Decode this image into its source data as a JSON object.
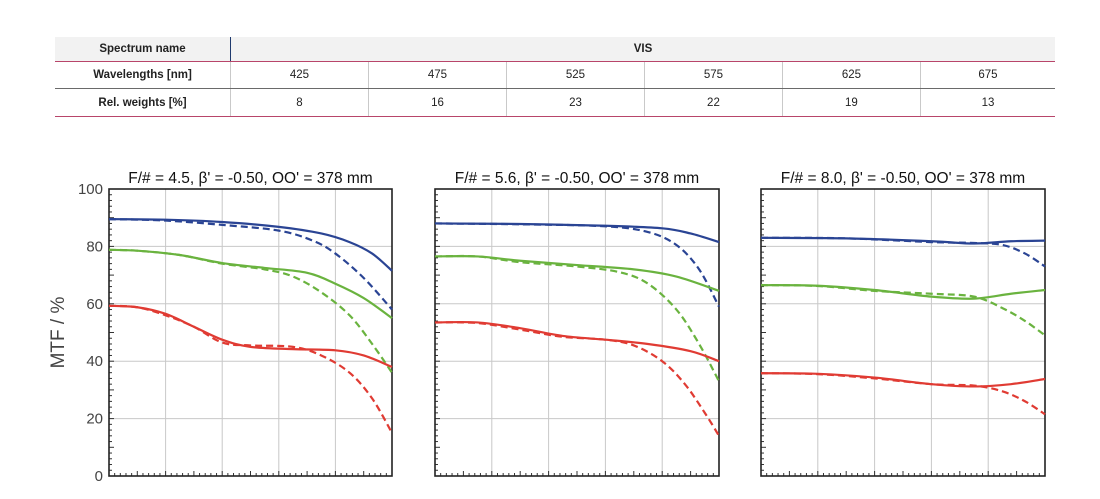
{
  "spectrum_table": {
    "row1": {
      "label": "Spectrum name",
      "value": "VIS"
    },
    "row2": {
      "label": "Wavelengths [nm]",
      "values": [
        "425",
        "475",
        "525",
        "575",
        "625",
        "675"
      ]
    },
    "row3": {
      "label": "Rel. weights [%]",
      "values": [
        "8",
        "16",
        "23",
        "22",
        "19",
        "13"
      ]
    }
  },
  "chart_data": [
    {
      "type": "line",
      "title": "F/# = 4.5, β' = -0.50, OO' = 378 mm",
      "ylabel": "MTF / %",
      "ylim": [
        0,
        100
      ],
      "yticks": [
        "0",
        "20",
        "40",
        "60",
        "80",
        "100"
      ],
      "xlim": [
        0,
        1
      ],
      "grid": true,
      "series": [
        {
          "color": "#2a4494",
          "style": "solid",
          "x": [
            0,
            0.2,
            0.4,
            0.6,
            0.75,
            0.85,
            0.93,
            1.0
          ],
          "y": [
            89.5,
            89.3,
            88.5,
            86.8,
            84.5,
            81.5,
            77.5,
            71.5
          ]
        },
        {
          "color": "#2a4494",
          "style": "dashed",
          "x": [
            0,
            0.2,
            0.4,
            0.6,
            0.72,
            0.8,
            0.9,
            1.0
          ],
          "y": [
            89.5,
            89,
            87.5,
            85.5,
            82,
            77.5,
            69,
            58
          ]
        },
        {
          "color": "#6ab33f",
          "style": "solid",
          "x": [
            0,
            0.1,
            0.25,
            0.4,
            0.55,
            0.7,
            0.8,
            0.9,
            1.0
          ],
          "y": [
            78.8,
            78.5,
            77,
            74.2,
            72.5,
            70.8,
            67,
            62,
            55
          ]
        },
        {
          "color": "#6ab33f",
          "style": "dashed",
          "x": [
            0,
            0.1,
            0.25,
            0.4,
            0.55,
            0.65,
            0.75,
            0.85,
            0.93,
            1.0
          ],
          "y": [
            78.8,
            78.5,
            77,
            74,
            72,
            69.5,
            64,
            56,
            46,
            36
          ]
        },
        {
          "color": "#e03b33",
          "style": "solid",
          "x": [
            0,
            0.1,
            0.2,
            0.3,
            0.4,
            0.5,
            0.65,
            0.8,
            0.9,
            1.0
          ],
          "y": [
            59.3,
            58.8,
            56.5,
            52,
            47.5,
            45,
            44.2,
            43.8,
            42,
            38
          ]
        },
        {
          "color": "#e03b33",
          "style": "dashed",
          "x": [
            0,
            0.1,
            0.2,
            0.3,
            0.4,
            0.5,
            0.65,
            0.75,
            0.85,
            0.93,
            1.0
          ],
          "y": [
            59.3,
            58.8,
            56,
            52,
            46.5,
            45.5,
            45,
            42,
            36,
            27,
            15
          ]
        }
      ]
    },
    {
      "type": "line",
      "title": "F/# = 5.6, β' = -0.50, OO' = 378 mm",
      "ylabel": "",
      "ylim": [
        0,
        100
      ],
      "xlim": [
        0,
        1
      ],
      "grid": true,
      "series": [
        {
          "color": "#2a4494",
          "style": "solid",
          "x": [
            0,
            0.3,
            0.6,
            0.8,
            0.9,
            1.0
          ],
          "y": [
            88,
            87.8,
            87.2,
            86.3,
            84.5,
            81.5
          ]
        },
        {
          "color": "#2a4494",
          "style": "dashed",
          "x": [
            0,
            0.3,
            0.6,
            0.75,
            0.85,
            0.93,
            1.0
          ],
          "y": [
            88,
            87.7,
            87,
            85,
            80.5,
            72,
            59
          ]
        },
        {
          "color": "#6ab33f",
          "style": "solid",
          "x": [
            0,
            0.15,
            0.3,
            0.5,
            0.7,
            0.85,
            1.0
          ],
          "y": [
            76.5,
            76.5,
            75,
            73.5,
            72,
            69.5,
            64.5
          ]
        },
        {
          "color": "#6ab33f",
          "style": "dashed",
          "x": [
            0,
            0.15,
            0.3,
            0.5,
            0.65,
            0.75,
            0.85,
            0.93,
            1.0
          ],
          "y": [
            76.5,
            76.5,
            74.5,
            73,
            71,
            67,
            58,
            46,
            33
          ]
        },
        {
          "color": "#e03b33",
          "style": "solid",
          "x": [
            0,
            0.15,
            0.3,
            0.45,
            0.6,
            0.75,
            0.9,
            1.0
          ],
          "y": [
            53.5,
            53.5,
            51.5,
            48.8,
            47.5,
            46,
            43.5,
            40
          ]
        },
        {
          "color": "#e03b33",
          "style": "dashed",
          "x": [
            0,
            0.15,
            0.3,
            0.45,
            0.6,
            0.7,
            0.8,
            0.88,
            0.95,
            1.0
          ],
          "y": [
            53.5,
            53.3,
            51,
            48.5,
            47.5,
            45.5,
            40,
            32,
            22,
            14
          ]
        }
      ]
    },
    {
      "type": "line",
      "title": "F/# = 8.0, β' = -0.50, OO' = 378 mm",
      "ylabel": "",
      "ylim": [
        0,
        100
      ],
      "xlim": [
        0,
        1
      ],
      "grid": true,
      "series": [
        {
          "color": "#2a4494",
          "style": "solid",
          "x": [
            0,
            0.3,
            0.6,
            0.75,
            0.88,
            1.0
          ],
          "y": [
            83,
            82.8,
            81.8,
            81,
            81.8,
            82
          ]
        },
        {
          "color": "#2a4494",
          "style": "dashed",
          "x": [
            0,
            0.3,
            0.6,
            0.75,
            0.85,
            0.93,
            1.0
          ],
          "y": [
            83,
            82.8,
            81.5,
            81.2,
            80.5,
            77.5,
            73
          ]
        },
        {
          "color": "#6ab33f",
          "style": "solid",
          "x": [
            0,
            0.2,
            0.4,
            0.6,
            0.75,
            0.88,
            1.0
          ],
          "y": [
            66.5,
            66.3,
            64.8,
            62.5,
            61.8,
            63.5,
            64.8
          ]
        },
        {
          "color": "#6ab33f",
          "style": "dashed",
          "x": [
            0,
            0.2,
            0.4,
            0.6,
            0.75,
            0.85,
            0.93,
            1.0
          ],
          "y": [
            66.5,
            66.2,
            64.5,
            63.5,
            62.5,
            58.5,
            54,
            49
          ]
        },
        {
          "color": "#e03b33",
          "style": "solid",
          "x": [
            0,
            0.2,
            0.4,
            0.6,
            0.75,
            0.88,
            1.0
          ],
          "y": [
            35.8,
            35.6,
            34.3,
            32,
            31.2,
            32,
            33.8
          ]
        },
        {
          "color": "#e03b33",
          "style": "dashed",
          "x": [
            0,
            0.2,
            0.4,
            0.6,
            0.75,
            0.85,
            0.93,
            1.0
          ],
          "y": [
            35.8,
            35.5,
            34,
            32,
            31.5,
            29.5,
            26,
            21.5
          ]
        }
      ]
    }
  ]
}
